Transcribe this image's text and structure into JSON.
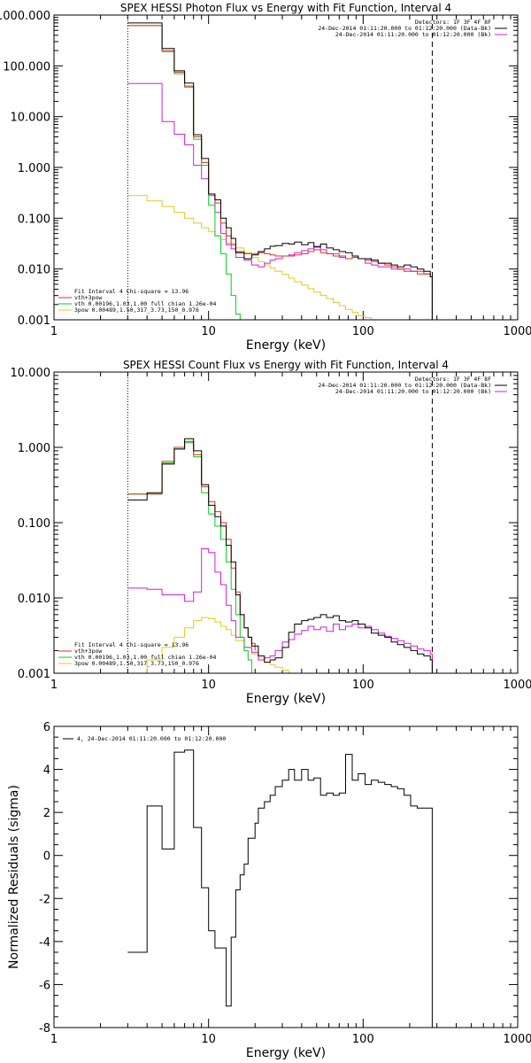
{
  "chart_data": [
    {
      "type": "line",
      "title": "SPEX HESSI Photon Flux vs Energy with Fit Function, Interval 4",
      "xlabel": "Energy (keV)",
      "ylabel": "",
      "xscale": "log",
      "yscale": "log",
      "xlim": [
        1,
        1000
      ],
      "ylim": [
        0.001,
        1000
      ],
      "xticks": [
        "1",
        "10",
        "100",
        "1000"
      ],
      "yticks": [
        "0.001",
        "0.010",
        "0.100",
        "1.000",
        "10.000",
        "100.000",
        "1000.000"
      ],
      "legend_top_right": [
        "Detectors: 1F 3F 4F 8F",
        "24-Dec-2014 01:11:20.000 to 01:12:20.000 (Data-Bk)",
        "24-Dec-2014 01:11:20.000 to 01:12:20.000 (Bk)"
      ],
      "legend_bottom_left": [
        "Fit Interval 4   Chi-square = 13.96",
        "vth+3pow",
        "vth 0.00196,1.03,1.00  full chian 1.26e-04",
        "3pow 0.00489,1.50,317_3.73,150_0.976"
      ],
      "vlines": [
        3,
        280
      ],
      "series": [
        {
          "name": "Data-Bk",
          "color": "#000000",
          "x": [
            3,
            4,
            5,
            6,
            7,
            8,
            9,
            10,
            11,
            12,
            13,
            14,
            15,
            17,
            19,
            21,
            23,
            25,
            27,
            30,
            33,
            36,
            40,
            44,
            48,
            53,
            58,
            64,
            70,
            77,
            85,
            93,
            103,
            113,
            125,
            138,
            152,
            167,
            184,
            203,
            224,
            247,
            272,
            280
          ],
          "y": [
            700,
            700,
            220,
            80,
            46,
            4.4,
            1.5,
            0.3,
            0.23,
            0.1,
            0.065,
            0.04,
            0.021,
            0.016,
            0.019,
            0.022,
            0.025,
            0.028,
            0.029,
            0.032,
            0.031,
            0.034,
            0.03,
            0.033,
            0.027,
            0.031,
            0.026,
            0.024,
            0.022,
            0.021,
            0.018,
            0.016,
            0.016,
            0.015,
            0.013,
            0.013,
            0.012,
            0.011,
            0.012,
            0.011,
            0.01,
            0.009,
            0.007,
            0.001
          ]
        },
        {
          "name": "vth+3pow",
          "color": "#e0301e",
          "x": [
            3,
            4,
            5,
            6,
            7,
            8,
            9,
            10,
            11,
            12,
            13,
            14,
            15,
            17,
            19,
            21,
            23,
            25,
            27,
            30,
            33,
            36,
            40,
            44,
            48,
            53,
            58,
            64,
            70,
            77,
            85,
            93,
            103,
            113,
            125,
            138,
            152,
            167,
            184,
            203,
            224,
            247,
            272,
            280
          ],
          "y": [
            620,
            620,
            200,
            75,
            40,
            4,
            1.25,
            0.3,
            0.2,
            0.08,
            0.045,
            0.03,
            0.022,
            0.02,
            0.02,
            0.021,
            0.02,
            0.019,
            0.018,
            0.018,
            0.018,
            0.019,
            0.02,
            0.022,
            0.024,
            0.021,
            0.02,
            0.018,
            0.017,
            0.016,
            0.017,
            0.016,
            0.015,
            0.014,
            0.013,
            0.012,
            0.011,
            0.01,
            0.009,
            0.009,
            0.008,
            0.008,
            0.007,
            0.001
          ]
        },
        {
          "name": "vth",
          "color": "#00d21e",
          "x": [
            3,
            4,
            5,
            6,
            7,
            8,
            9,
            10,
            11,
            12,
            13,
            14,
            15,
            16
          ],
          "y": [
            620,
            620,
            190,
            70,
            38,
            3.6,
            1.1,
            0.18,
            0.045,
            0.02,
            0.008,
            0.003,
            0.0013,
            0.001
          ]
        },
        {
          "name": "3pow",
          "color": "#e6c81e",
          "x": [
            3,
            4,
            5,
            6,
            7,
            8,
            9,
            10,
            11,
            12,
            13,
            15,
            17,
            19,
            21,
            23,
            25,
            27,
            30,
            33,
            36,
            40,
            44,
            48,
            53,
            58,
            64,
            70,
            77,
            85,
            93,
            103,
            113,
            125,
            138,
            152
          ],
          "y": [
            0.28,
            0.22,
            0.17,
            0.13,
            0.1,
            0.08,
            0.065,
            0.055,
            0.045,
            0.038,
            0.032,
            0.026,
            0.021,
            0.017,
            0.014,
            0.012,
            0.0105,
            0.009,
            0.0078,
            0.0066,
            0.0056,
            0.0048,
            0.0041,
            0.0035,
            0.003,
            0.0026,
            0.0022,
            0.0019,
            0.0016,
            0.0014,
            0.0012,
            0.0011,
            0.001,
            0.0009,
            0.0008,
            0.0007
          ]
        },
        {
          "name": "Bk",
          "color": "#d21edc",
          "x": [
            3,
            4,
            5,
            6,
            7,
            8,
            9,
            10,
            11,
            12,
            13,
            14,
            15,
            17,
            19,
            21,
            23,
            25,
            27,
            30,
            33,
            36,
            40,
            44,
            48,
            53,
            58,
            64,
            70,
            77,
            85,
            93,
            103,
            113,
            125,
            138,
            152,
            167,
            184,
            203,
            224,
            247,
            272,
            280
          ],
          "y": [
            45,
            45,
            8,
            4.5,
            2.8,
            1.1,
            0.6,
            0.28,
            0.13,
            0.05,
            0.03,
            0.025,
            0.017,
            0.015,
            0.012,
            0.011,
            0.013,
            0.015,
            0.016,
            0.018,
            0.019,
            0.021,
            0.023,
            0.025,
            0.028,
            0.024,
            0.02,
            0.02,
            0.018,
            0.016,
            0.017,
            0.016,
            0.013,
            0.012,
            0.011,
            0.011,
            0.01,
            0.01,
            0.01,
            0.009,
            0.009,
            0.008,
            0.007,
            0.001
          ]
        }
      ]
    },
    {
      "type": "line",
      "title": "SPEX HESSI Count Flux vs Energy with Fit Function, Interval 4",
      "xlabel": "Energy (keV)",
      "ylabel": "",
      "xscale": "log",
      "yscale": "log",
      "xlim": [
        1,
        1000
      ],
      "ylim": [
        0.001,
        10
      ],
      "xticks": [
        "1",
        "10",
        "100",
        "1000"
      ],
      "yticks": [
        "0.001",
        "0.010",
        "0.100",
        "1.000",
        "10.000"
      ],
      "legend_top_right": [
        "Detectors: 1F 3F 4F 8F",
        "24-Dec-2014 01:11:20.000 to 01:12:20.000 (Data-Bk)",
        "24-Dec-2014 01:11:20.000 to 01:12:20.000 (Bk)"
      ],
      "legend_bottom_left": [
        "Fit Interval 4   Chi-square = 13.96",
        "vth+3pow",
        "vth 0.00196,1.03,1.00  full chian 1.26e-04",
        "3pow 0.00489,1.50,317_3.73,150_0.976"
      ],
      "vlines": [
        3,
        280
      ],
      "series": [
        {
          "name": "Data-Bk",
          "color": "#000000",
          "x": [
            3,
            4,
            5,
            6,
            7,
            8,
            9,
            10,
            11,
            12,
            13,
            14,
            15,
            16,
            17,
            18,
            19,
            21,
            23,
            25,
            27,
            30,
            33,
            36,
            40,
            44,
            48,
            53,
            58,
            64,
            70,
            77,
            85,
            93,
            103,
            113,
            125,
            138,
            152,
            167,
            184,
            203,
            224,
            247,
            272,
            280
          ],
          "y": [
            0.2,
            0.25,
            0.6,
            0.95,
            1.3,
            0.9,
            0.32,
            0.17,
            0.12,
            0.09,
            0.05,
            0.03,
            0.011,
            0.006,
            0.004,
            0.003,
            0.0023,
            0.0017,
            0.0014,
            0.0015,
            0.0016,
            0.0022,
            0.0035,
            0.0045,
            0.005,
            0.0052,
            0.0055,
            0.006,
            0.0055,
            0.0058,
            0.005,
            0.0048,
            0.005,
            0.0045,
            0.004,
            0.0034,
            0.0032,
            0.003,
            0.0026,
            0.0024,
            0.0022,
            0.002,
            0.0018,
            0.0017,
            0.0015,
            0.001
          ]
        },
        {
          "name": "vth+3pow",
          "color": "#e0301e",
          "x": [
            3,
            4,
            5,
            6,
            7,
            8,
            9,
            10,
            11,
            12,
            13,
            14,
            15,
            16,
            17,
            18,
            19,
            20
          ],
          "y": [
            0.24,
            0.24,
            0.65,
            1,
            1.2,
            0.8,
            0.3,
            0.19,
            0.14,
            0.1,
            0.06,
            0.025,
            0.012,
            0.006,
            0.004,
            0.003,
            0.0025,
            0.002
          ]
        },
        {
          "name": "vth",
          "color": "#00d21e",
          "x": [
            3,
            4,
            5,
            6,
            7,
            8,
            9,
            10,
            11,
            12,
            13,
            14,
            15,
            16,
            17,
            18,
            19
          ],
          "y": [
            0.24,
            0.24,
            0.62,
            0.95,
            1.15,
            0.75,
            0.25,
            0.13,
            0.09,
            0.06,
            0.03,
            0.013,
            0.006,
            0.003,
            0.002,
            0.0015,
            0.001
          ]
        },
        {
          "name": "3pow",
          "color": "#e6c81e",
          "x": [
            3,
            4,
            5,
            6,
            7,
            8,
            9,
            10,
            11,
            12,
            13,
            14,
            15,
            17,
            19,
            21,
            23,
            25,
            27,
            30,
            33
          ],
          "y": [
            0.001,
            0.0015,
            0.0022,
            0.003,
            0.004,
            0.005,
            0.0055,
            0.0053,
            0.0048,
            0.0042,
            0.0038,
            0.0032,
            0.0027,
            0.0022,
            0.0018,
            0.0016,
            0.0014,
            0.0013,
            0.0012,
            0.0011,
            0.001
          ]
        },
        {
          "name": "Bk",
          "color": "#d21edc",
          "x": [
            3,
            4,
            5,
            6,
            7,
            8,
            9,
            10,
            11,
            12,
            13,
            14,
            15,
            17,
            19,
            21,
            23,
            25,
            27,
            30,
            33,
            36,
            40,
            44,
            48,
            53,
            58,
            64,
            70,
            77,
            85,
            93,
            103,
            113,
            125,
            138,
            152,
            167,
            184,
            203,
            224,
            247,
            272,
            280
          ],
          "y": [
            0.0135,
            0.013,
            0.011,
            0.011,
            0.009,
            0.012,
            0.045,
            0.04,
            0.022,
            0.015,
            0.008,
            0.005,
            0.003,
            0.0022,
            0.0019,
            0.0015,
            0.0016,
            0.0017,
            0.002,
            0.0026,
            0.0028,
            0.0033,
            0.0037,
            0.0042,
            0.0038,
            0.0041,
            0.0036,
            0.0045,
            0.0038,
            0.0042,
            0.0045,
            0.004,
            0.0042,
            0.0038,
            0.0034,
            0.0031,
            0.0029,
            0.0027,
            0.0025,
            0.0023,
            0.0021,
            0.002,
            0.0018,
            0.001
          ]
        }
      ]
    },
    {
      "type": "line",
      "title": "",
      "xlabel": "Energy (keV)",
      "ylabel": "Normalized Residuals (sigma)",
      "xscale": "log",
      "yscale": "linear",
      "xlim": [
        1,
        1000
      ],
      "ylim": [
        -8,
        6
      ],
      "xticks": [
        "1",
        "10",
        "100",
        "1000"
      ],
      "yticks": [
        "-8",
        "-6",
        "-4",
        "-2",
        "0",
        "2",
        "4",
        "6"
      ],
      "legend_top_left": [
        "4, 24-Dec-2014 01:11:20.000 to 01:12:20.000"
      ],
      "series": [
        {
          "name": "4, 24-Dec-2014 01:11:20.000 to 01:12:20.000",
          "color": "#000000",
          "x": [
            3,
            4,
            5,
            6,
            7,
            8,
            9,
            10,
            11,
            12,
            13,
            14,
            15,
            16,
            17,
            18,
            19,
            20,
            21,
            23,
            25,
            27,
            30,
            33,
            36,
            40,
            44,
            48,
            53,
            58,
            64,
            70,
            77,
            85,
            93,
            103,
            113,
            125,
            138,
            152,
            167,
            184,
            203,
            224,
            247,
            272,
            280
          ],
          "y": [
            -4.5,
            2.3,
            0.3,
            4.8,
            4.9,
            1.3,
            -1.5,
            -3.5,
            -4.3,
            -4.3,
            -7,
            -3.8,
            -1.6,
            -0.9,
            -0.4,
            0.8,
            0.8,
            1.5,
            2.2,
            2.5,
            2.8,
            3.2,
            3.5,
            4,
            3.5,
            4,
            3.5,
            3.6,
            2.8,
            2.9,
            2.8,
            2.9,
            4.7,
            3.5,
            3.8,
            3.3,
            3.5,
            3.4,
            3.3,
            3.2,
            3.1,
            2.8,
            2.3,
            2.2,
            2.2,
            2.2,
            -8
          ]
        }
      ]
    }
  ]
}
